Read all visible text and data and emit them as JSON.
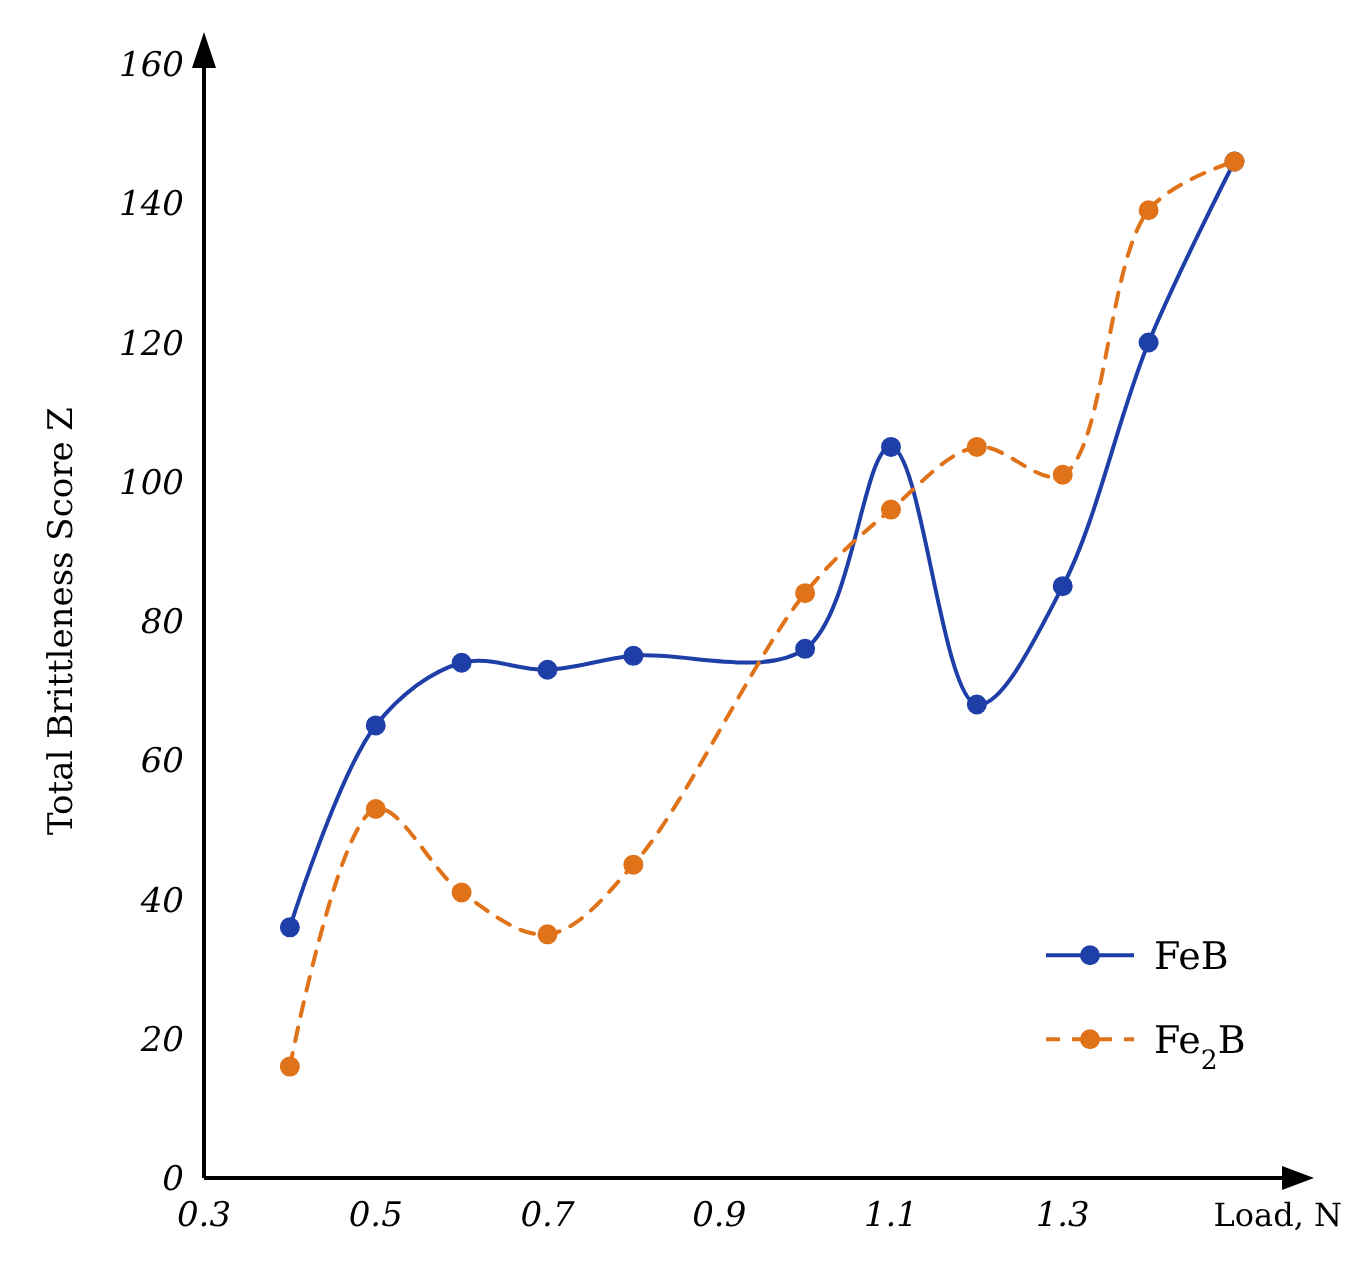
{
  "chart_data": {
    "type": "line",
    "xlabel": "Load, N",
    "ylabel": "Total Brittleness Score Z",
    "x": [
      0.4,
      0.5,
      0.6,
      0.7,
      0.8,
      1.0,
      1.1,
      1.2,
      1.3,
      1.4,
      1.5
    ],
    "series": [
      {
        "name": "FeB",
        "color": "#1f3fa8",
        "values": [
          36,
          65,
          74,
          73,
          75,
          76,
          105,
          68,
          85,
          120,
          146
        ],
        "line_style": "solid"
      },
      {
        "name": "Fe$_{2}$B",
        "color": "#e0731a",
        "values": [
          16,
          53,
          41,
          35,
          45,
          84,
          96,
          105,
          101,
          139,
          146
        ],
        "line_style": "dashed"
      }
    ],
    "xlim": [
      0.3,
      1.56
    ],
    "xticks": [
      0.3,
      0.5,
      0.7,
      0.9,
      1.1,
      1.3
    ],
    "ylim": [
      0,
      160
    ],
    "yticks": [
      0,
      20,
      40,
      60,
      80,
      100,
      120,
      140,
      160
    ],
    "grid": false,
    "legend": "bottom right",
    "marker": "circle"
  }
}
